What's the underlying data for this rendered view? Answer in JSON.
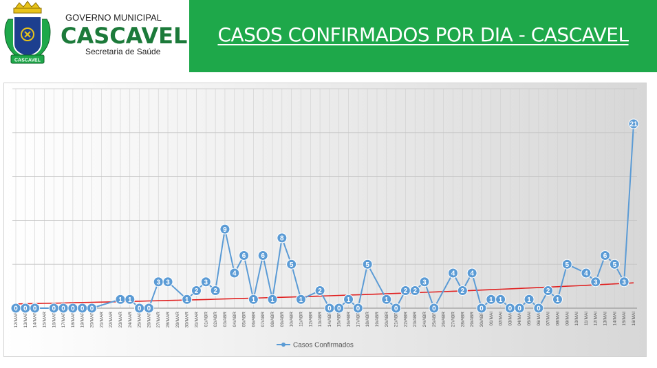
{
  "header": {
    "title": "CASOS CONFIRMADOS POR DIA - CASCAVEL",
    "logo": {
      "top_text": "GOVERNO MUNICIPAL",
      "name": "CASCAVEL",
      "subtitle": "Secretaria de Saúde",
      "crest_banner": "CASCAVEL"
    },
    "accent_color": "#1ea84a"
  },
  "chart_data": {
    "type": "line",
    "title": "",
    "xlabel": "",
    "ylabel": "",
    "ylim": [
      0,
      25
    ],
    "grid": true,
    "legend_position": "bottom",
    "categories": [
      "12/MAR",
      "13/MAR",
      "14/MAR",
      "15/MAR",
      "16/MAR",
      "17/MAR",
      "18/MAR",
      "19/MAR",
      "20/MAR",
      "21/MAR",
      "22/MAR",
      "23/MAR",
      "24/MAR",
      "25/MAR",
      "26/MAR",
      "27/MAR",
      "28/MAR",
      "29/MAR",
      "30/MAR",
      "31/MAR",
      "01/ABR",
      "02/ABR",
      "03/ABR",
      "04/ABR",
      "05/ABR",
      "06/ABR",
      "07/ABR",
      "08/ABR",
      "09/ABR",
      "10/ABR",
      "11/ABR",
      "12/ABR",
      "13/ABR",
      "14/ABR",
      "15/ABR",
      "16/ABR",
      "17/ABR",
      "18/ABR",
      "19/ABR",
      "20/ABR",
      "21/ABR",
      "22/ABR",
      "23/ABR",
      "24/ABR",
      "25/ABR",
      "26/ABR",
      "27/ABR",
      "28/ABR",
      "29/ABR",
      "30/ABR",
      "01/MAI",
      "02/MAI",
      "03/MAI",
      "04/MAI",
      "05/MAI",
      "06/MAI",
      "07/MAI",
      "08/MAI",
      "09/MAI",
      "10/MAI",
      "11/MAI",
      "12/MAI",
      "13/MAI",
      "14/MAI",
      "15/MAI",
      "16/MAI"
    ],
    "series": [
      {
        "name": "Casos Confirmados",
        "color": "#5b9bd5",
        "values": [
          0,
          0,
          0,
          null,
          0,
          0,
          0,
          0,
          0,
          null,
          null,
          1,
          1,
          0,
          0,
          3,
          3,
          null,
          1,
          2,
          3,
          2,
          9,
          4,
          6,
          1,
          6,
          1,
          8,
          5,
          1,
          null,
          2,
          0,
          0,
          1,
          0,
          5,
          null,
          1,
          0,
          2,
          2,
          3,
          0,
          null,
          4,
          2,
          4,
          0,
          1,
          1,
          0,
          0,
          1,
          0,
          2,
          1,
          5,
          null,
          4,
          3,
          6,
          5,
          3,
          21
        ]
      }
    ],
    "trendline": {
      "type": "exponential",
      "color": "#e02020"
    }
  }
}
